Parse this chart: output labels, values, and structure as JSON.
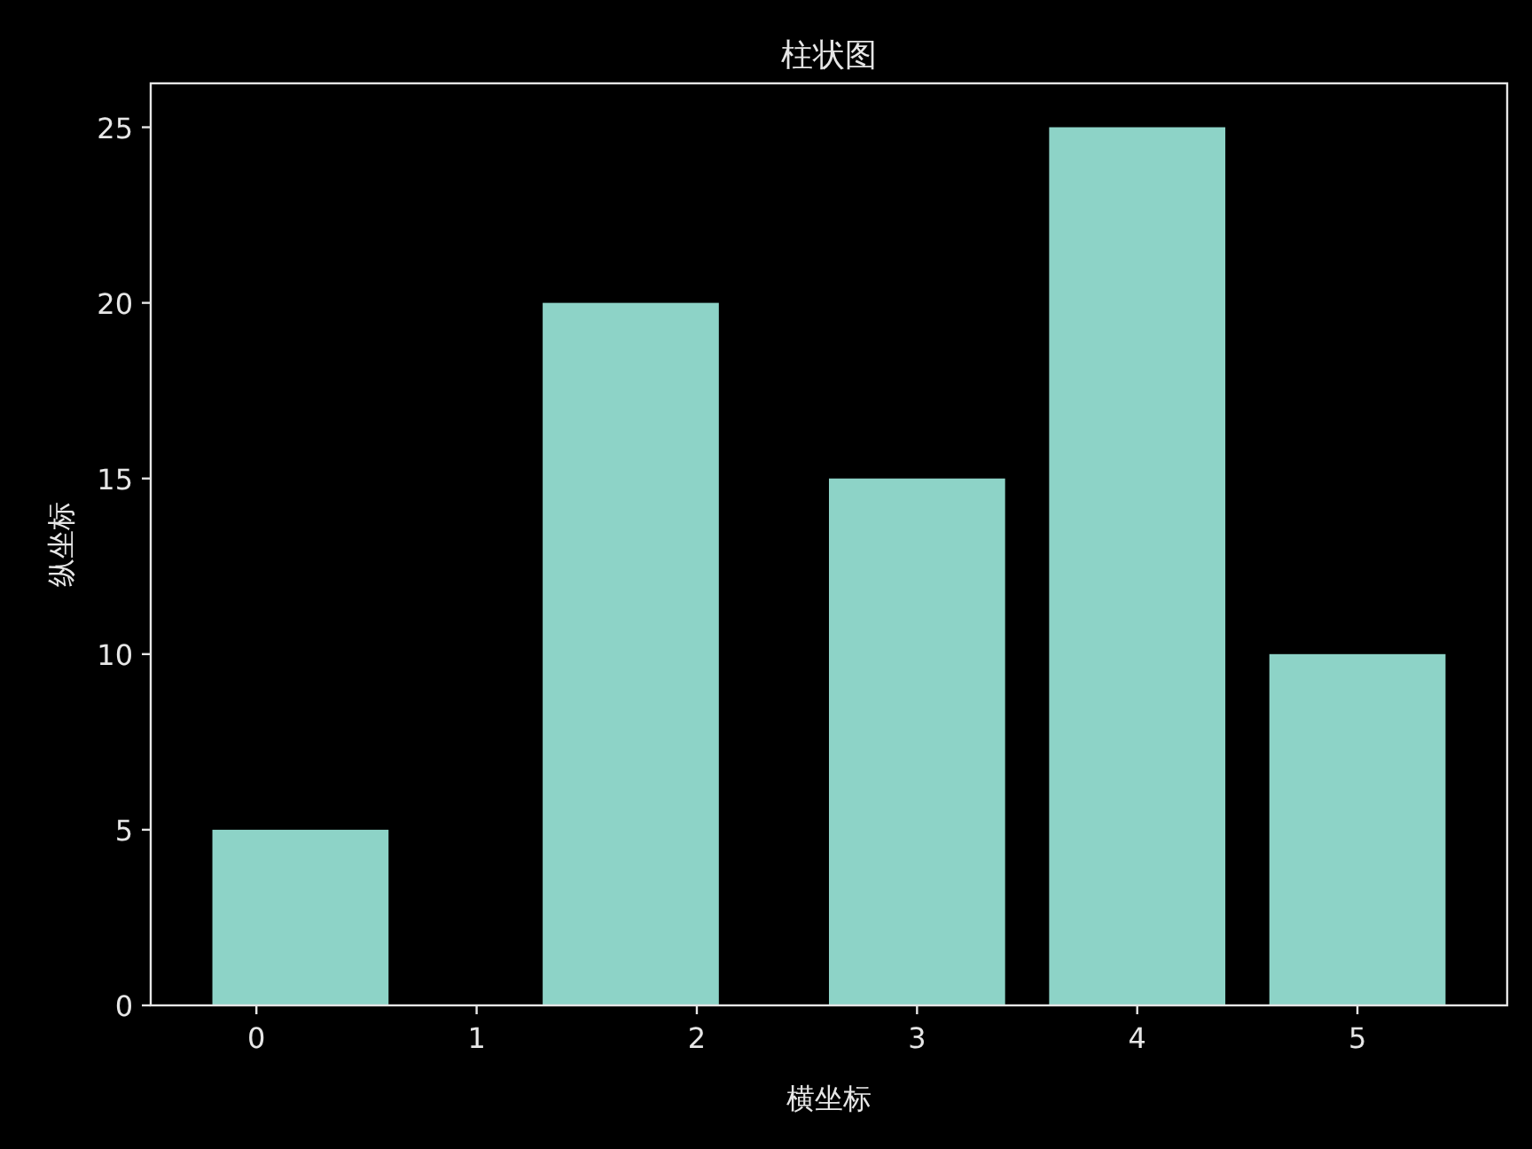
{
  "chart_data": {
    "type": "bar",
    "title": "柱状图",
    "xlabel": "横坐标",
    "ylabel": "纵坐标",
    "x": [
      0.2,
      1.7,
      3,
      4,
      5
    ],
    "values": [
      5,
      20,
      15,
      25,
      10
    ],
    "color": "#8dd3c7",
    "xlim": [
      -0.48,
      5.68
    ],
    "xticks": [
      0,
      1,
      2,
      3,
      4,
      5
    ],
    "ylim": [
      0,
      26.25
    ],
    "yticks": [
      0,
      5,
      10,
      15,
      20,
      25
    ]
  }
}
